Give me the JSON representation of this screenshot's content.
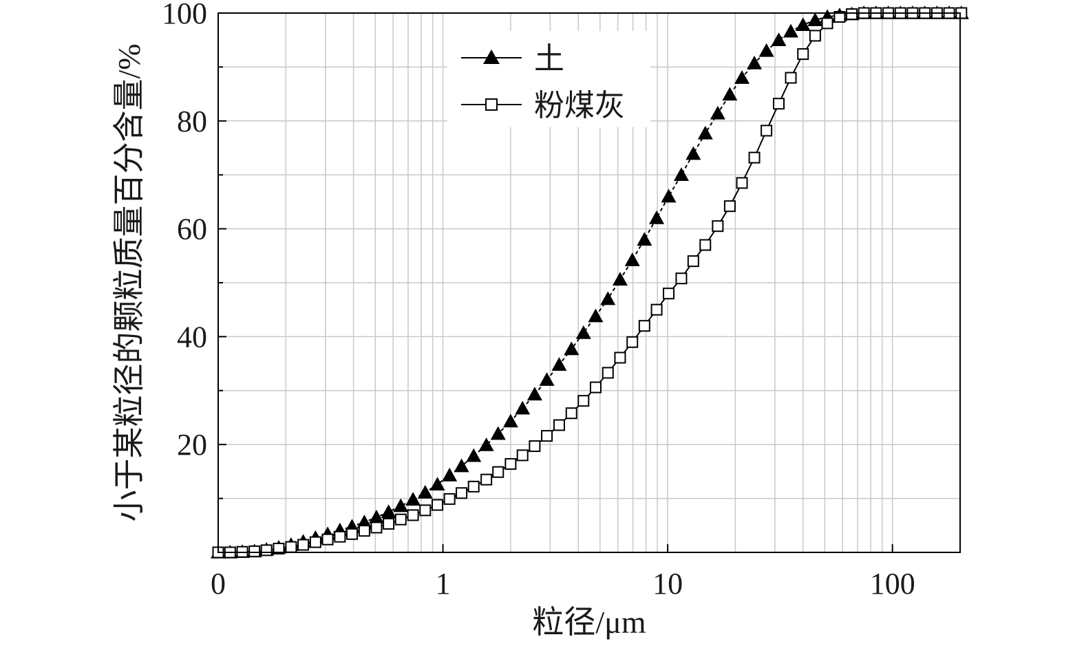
{
  "chart_data": {
    "type": "scatter",
    "title": "",
    "xlabel": "粒径/μm",
    "ylabel": "小于某粒径的颗粒质量百分含量/%",
    "x_scale": "log",
    "xlim": [
      0.1,
      200
    ],
    "ylim": [
      0,
      100
    ],
    "x_tick_labels": [
      "0",
      "1",
      "10",
      "100"
    ],
    "y_tick_labels": [
      "20",
      "40",
      "60",
      "80",
      "100"
    ],
    "y_ticks": [
      20,
      40,
      60,
      80,
      100
    ],
    "grid": true,
    "legend_position": "top-left",
    "series": [
      {
        "name": "土",
        "marker": "filled-triangle",
        "line": "dashed",
        "color": "#000000",
        "points": [
          [
            0.1,
            0.0
          ],
          [
            0.113,
            0.0
          ],
          [
            0.128,
            0.1
          ],
          [
            0.145,
            0.2
          ],
          [
            0.164,
            0.5
          ],
          [
            0.186,
            0.9
          ],
          [
            0.211,
            1.4
          ],
          [
            0.239,
            2.0
          ],
          [
            0.271,
            2.7
          ],
          [
            0.307,
            3.4
          ],
          [
            0.348,
            4.1
          ],
          [
            0.394,
            4.8
          ],
          [
            0.447,
            5.6
          ],
          [
            0.506,
            6.5
          ],
          [
            0.573,
            7.5
          ],
          [
            0.649,
            8.6
          ],
          [
            0.736,
            9.8
          ],
          [
            0.834,
            11.1
          ],
          [
            0.945,
            12.6
          ],
          [
            1.07,
            14.3
          ],
          [
            1.21,
            16.0
          ],
          [
            1.37,
            17.9
          ],
          [
            1.56,
            19.9
          ],
          [
            1.76,
            22.0
          ],
          [
            2.0,
            24.3
          ],
          [
            2.26,
            26.7
          ],
          [
            2.56,
            29.3
          ],
          [
            2.9,
            32.0
          ],
          [
            3.29,
            34.8
          ],
          [
            3.73,
            37.7
          ],
          [
            4.22,
            40.7
          ],
          [
            4.78,
            43.8
          ],
          [
            5.42,
            47.0
          ],
          [
            6.14,
            50.6
          ],
          [
            6.96,
            54.2
          ],
          [
            7.88,
            58.0
          ],
          [
            8.93,
            62.0
          ],
          [
            10.1,
            66.0
          ],
          [
            11.5,
            70.0
          ],
          [
            13.0,
            73.9
          ],
          [
            14.7,
            77.7
          ],
          [
            16.7,
            81.4
          ],
          [
            18.9,
            84.9
          ],
          [
            21.4,
            88.0
          ],
          [
            24.3,
            90.7
          ],
          [
            27.5,
            93.0
          ],
          [
            31.2,
            95.0
          ],
          [
            35.3,
            96.6
          ],
          [
            40.0,
            97.8
          ],
          [
            45.3,
            98.7
          ],
          [
            51.3,
            99.3
          ],
          [
            58.2,
            99.6
          ],
          [
            65.9,
            99.8
          ],
          [
            74.6,
            100.0
          ],
          [
            84.5,
            100.0
          ],
          [
            95.8,
            100.0
          ],
          [
            108.5,
            100.0
          ],
          [
            122.9,
            100.0
          ],
          [
            139.3,
            100.0
          ],
          [
            157.8,
            100.0
          ],
          [
            178.8,
            100.0
          ],
          [
            202.6,
            100.0
          ]
        ]
      },
      {
        "name": "粉煤灰",
        "marker": "open-square",
        "line": "solid",
        "color": "#000000",
        "points": [
          [
            0.1,
            0.0
          ],
          [
            0.113,
            0.0
          ],
          [
            0.128,
            0.1
          ],
          [
            0.145,
            0.2
          ],
          [
            0.164,
            0.4
          ],
          [
            0.186,
            0.7
          ],
          [
            0.211,
            1.0
          ],
          [
            0.239,
            1.4
          ],
          [
            0.271,
            1.9
          ],
          [
            0.307,
            2.4
          ],
          [
            0.348,
            2.9
          ],
          [
            0.394,
            3.4
          ],
          [
            0.447,
            4.0
          ],
          [
            0.506,
            4.6
          ],
          [
            0.573,
            5.3
          ],
          [
            0.649,
            6.1
          ],
          [
            0.736,
            6.9
          ],
          [
            0.834,
            7.8
          ],
          [
            0.945,
            8.8
          ],
          [
            1.07,
            9.9
          ],
          [
            1.21,
            11.0
          ],
          [
            1.37,
            12.2
          ],
          [
            1.56,
            13.5
          ],
          [
            1.76,
            14.9
          ],
          [
            2.0,
            16.4
          ],
          [
            2.26,
            18.0
          ],
          [
            2.56,
            19.7
          ],
          [
            2.9,
            21.6
          ],
          [
            3.29,
            23.6
          ],
          [
            3.73,
            25.8
          ],
          [
            4.22,
            28.1
          ],
          [
            4.78,
            30.6
          ],
          [
            5.42,
            33.3
          ],
          [
            6.14,
            36.1
          ],
          [
            6.96,
            39.0
          ],
          [
            7.88,
            42.0
          ],
          [
            8.93,
            45.0
          ],
          [
            10.1,
            48.0
          ],
          [
            11.5,
            50.8
          ],
          [
            13.0,
            54.0
          ],
          [
            14.7,
            57.0
          ],
          [
            16.7,
            60.5
          ],
          [
            18.9,
            64.2
          ],
          [
            21.4,
            68.5
          ],
          [
            24.3,
            73.2
          ],
          [
            27.5,
            78.2
          ],
          [
            31.2,
            83.2
          ],
          [
            35.3,
            88.0
          ],
          [
            40.0,
            92.4
          ],
          [
            45.3,
            95.8
          ],
          [
            51.3,
            98.1
          ],
          [
            58.2,
            99.3
          ],
          [
            65.9,
            99.8
          ],
          [
            74.6,
            100.0
          ],
          [
            84.5,
            100.0
          ],
          [
            95.8,
            100.0
          ],
          [
            108.5,
            100.0
          ],
          [
            122.9,
            100.0
          ],
          [
            139.3,
            100.0
          ],
          [
            157.8,
            100.0
          ],
          [
            178.8,
            100.0
          ],
          [
            202.6,
            100.0
          ]
        ]
      }
    ]
  }
}
